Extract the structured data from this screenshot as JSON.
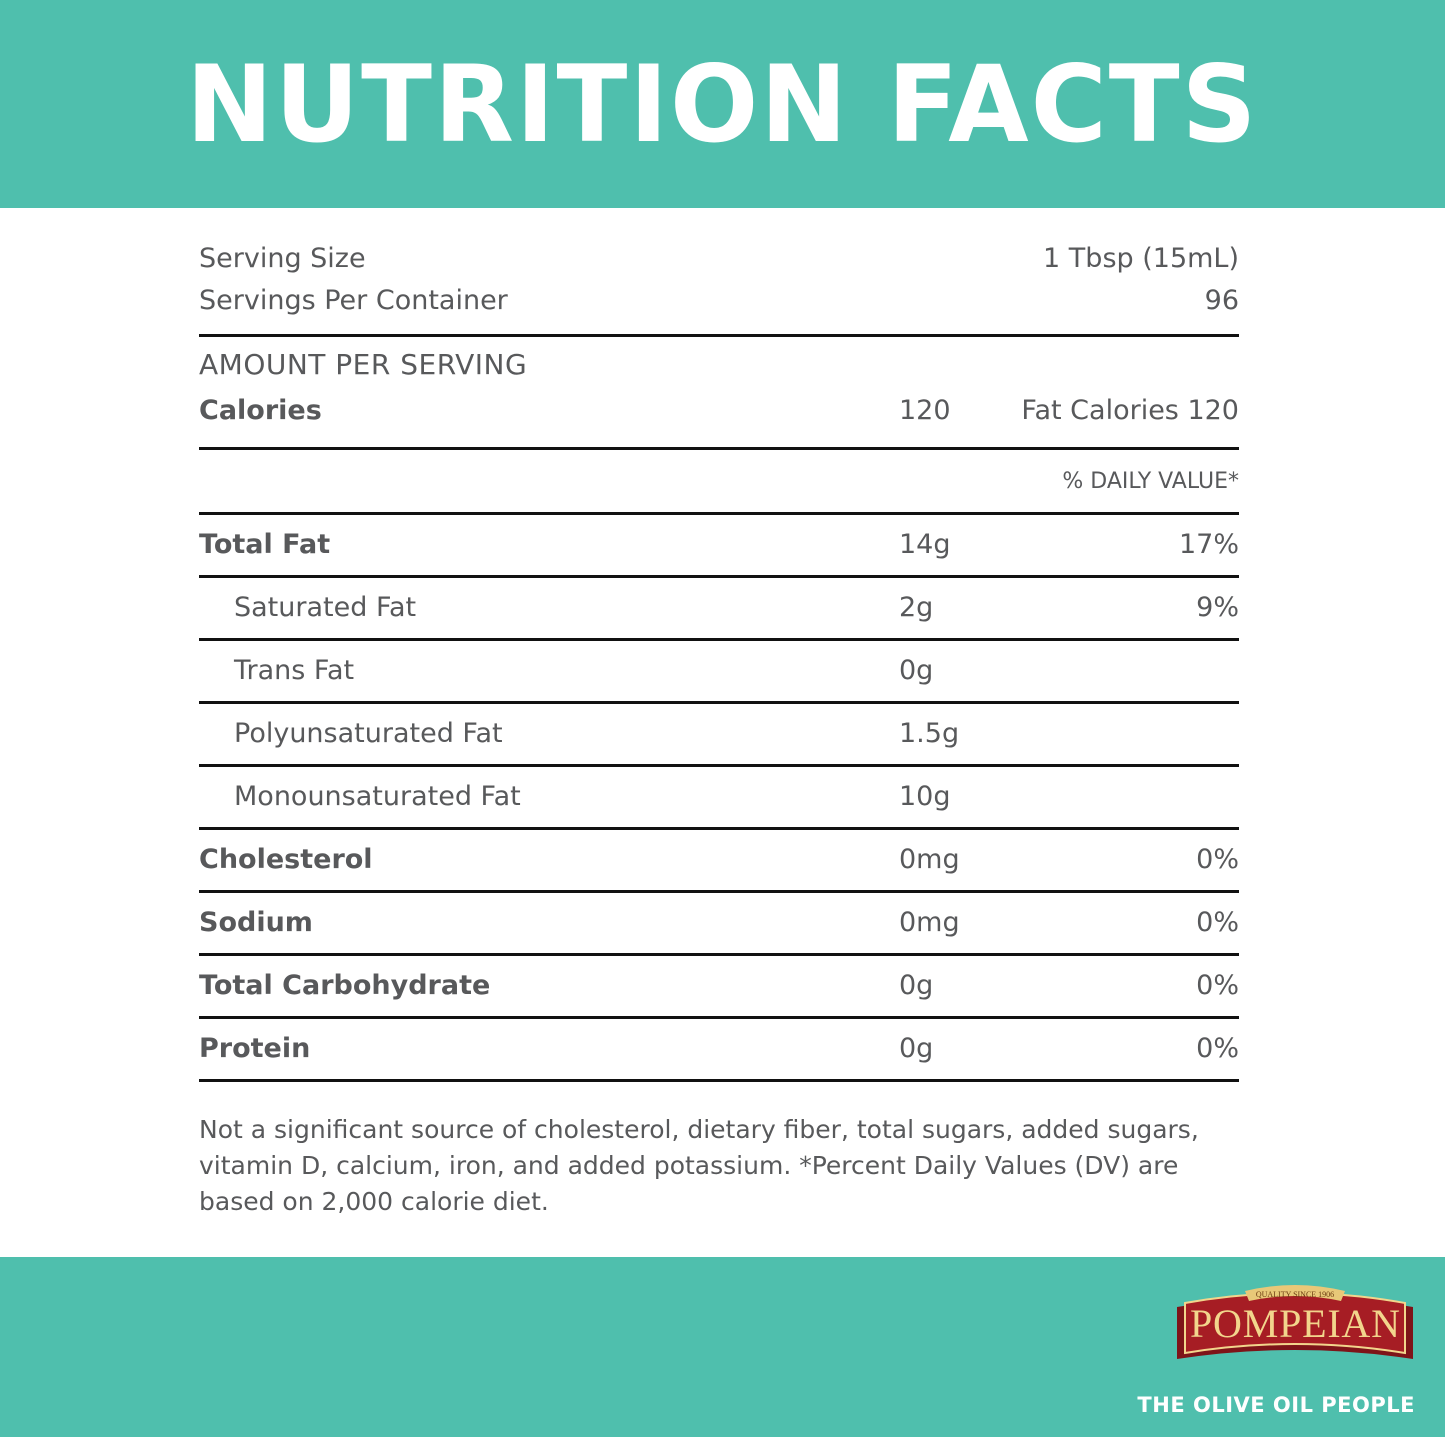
{
  "title": "NUTRITION FACTS",
  "serving": {
    "size_label": "Serving Size",
    "size_value": "1 Tbsp (15mL)",
    "per_container_label": "Servings Per Container",
    "per_container_value": "96"
  },
  "amount_per_serving": "AMOUNT PER SERVING",
  "calories": {
    "label": "Calories",
    "value": "120",
    "fat_calories": "Fat Calories 120"
  },
  "daily_value_header": "% DAILY VALUE*",
  "nutrients": [
    {
      "label": "Total Fat",
      "amount": "14g",
      "dv": "17%"
    },
    {
      "label": "Saturated Fat",
      "amount": "2g",
      "dv": "9%"
    },
    {
      "label": "Trans Fat",
      "amount": "0g",
      "dv": ""
    },
    {
      "label": "Polyunsaturated Fat",
      "amount": "1.5g",
      "dv": ""
    },
    {
      "label": "Monounsaturated Fat",
      "amount": "10g",
      "dv": ""
    },
    {
      "label": "Cholesterol",
      "amount": "0mg",
      "dv": "0%"
    },
    {
      "label": "Sodium",
      "amount": "0mg",
      "dv": "0%"
    },
    {
      "label": "Total Carbohydrate",
      "amount": "0g",
      "dv": "0%"
    },
    {
      "label": "Protein",
      "amount": "0g",
      "dv": "0%"
    }
  ],
  "footnote": "Not a significant source of cholesterol, dietary fiber, total sugars, added sugars, vitamin D, calcium, iron, and added potassium. *Percent Daily Values (DV) are based on 2,000 calorie diet.",
  "brand": {
    "logo_text": "POMPEIAN",
    "logo_banner": "QUALITY SINCE 1906",
    "tagline": "THE OLIVE OIL PEOPLE"
  },
  "colors": {
    "teal": "#4fbfad",
    "text": "#58595b",
    "logo_red": "#9b1b22",
    "logo_gold": "#f2d58c"
  }
}
